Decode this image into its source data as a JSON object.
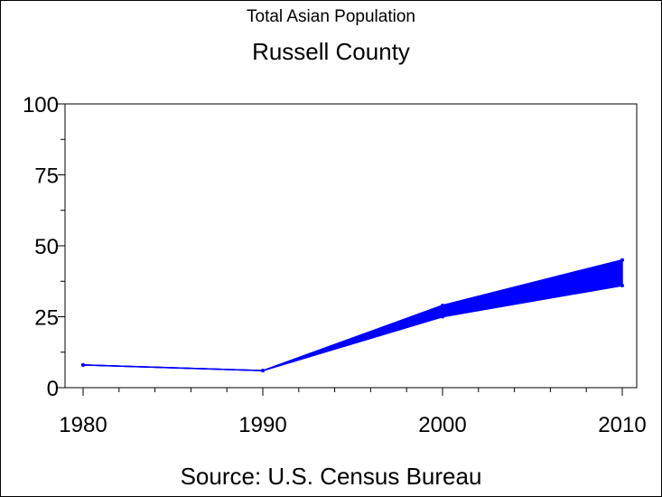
{
  "chart_data": {
    "type": "area",
    "title": "Total Asian Population",
    "subtitle": "Russell County",
    "source": "Source: U.S. Census Bureau",
    "x": [
      1980,
      1990,
      2000,
      2010
    ],
    "series_upper": [
      8,
      6,
      29,
      45
    ],
    "series_lower": [
      8,
      6,
      25,
      36
    ],
    "ylim": [
      0,
      100
    ],
    "xlim": [
      1980,
      2010
    ],
    "yticks": [
      "0",
      "25",
      "50",
      "75",
      "100"
    ],
    "xticks": [
      "1980",
      "1990",
      "2000",
      "2010"
    ],
    "color": "#0000ff",
    "grid": false
  }
}
